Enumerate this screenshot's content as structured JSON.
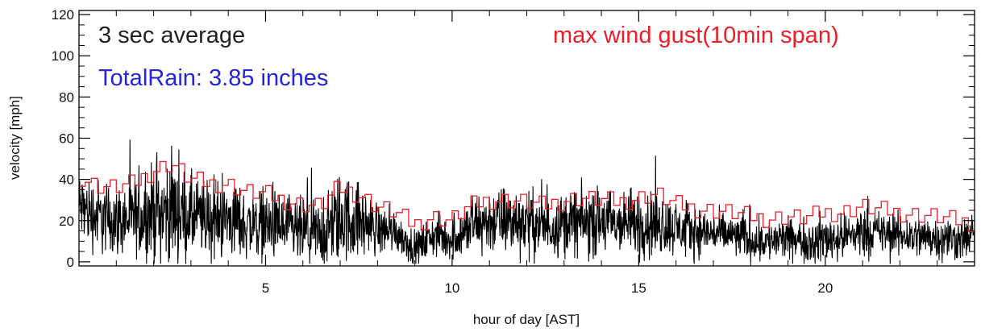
{
  "chart_data": {
    "type": "line",
    "title": "",
    "xlabel": "hour of day [AST]",
    "ylabel": "velocity [mph]",
    "xlim": [
      0,
      24
    ],
    "ylim": [
      -2,
      122
    ],
    "x_ticks": [
      5,
      10,
      15,
      20
    ],
    "x_tick_labels": [
      "5",
      "10",
      "15",
      "20"
    ],
    "y_ticks": [
      0,
      20,
      40,
      60,
      80,
      100,
      120
    ],
    "y_tick_labels": [
      "0",
      "20",
      "40",
      "60",
      "80",
      "100",
      "120"
    ],
    "grid": false,
    "legend": "none",
    "annotations": [
      {
        "id": "average",
        "text": "3 sec average",
        "color": "#222222",
        "placement": "top-left"
      },
      {
        "id": "gust",
        "text": "max wind gust(10min span)",
        "color": "#e8202a",
        "placement": "top-right"
      },
      {
        "id": "rain",
        "text": "TotalRain: 3.85 inches",
        "color": "#2424d8",
        "placement": "top-left-below"
      }
    ],
    "series": [
      {
        "id": "avg3s",
        "color": "#000000",
        "description_hidden": true,
        "x": [
          0.0,
          0.5,
          1.0,
          1.5,
          2.0,
          2.5,
          3.0,
          3.5,
          4.0,
          4.5,
          5.0,
          5.5,
          6.0,
          6.5,
          7.0,
          7.5,
          8.0,
          8.5,
          9.0,
          9.5,
          10.0,
          10.5,
          11.0,
          11.5,
          12.0,
          12.5,
          13.0,
          13.5,
          14.0,
          14.5,
          15.0,
          15.5,
          16.0,
          16.5,
          17.0,
          17.5,
          18.0,
          18.5,
          19.0,
          19.5,
          20.0,
          20.5,
          21.0,
          21.5,
          22.0,
          22.5,
          23.0,
          23.5,
          24.0
        ],
        "y": [
          27,
          22,
          20,
          21,
          24,
          25,
          22,
          20,
          21,
          18,
          18,
          16,
          14,
          13,
          21,
          20,
          16,
          15,
          6,
          13,
          11,
          17,
          20,
          20,
          19,
          17,
          19,
          19,
          19,
          18,
          19,
          19,
          16,
          15,
          14,
          13,
          11,
          10,
          11,
          10,
          11,
          12,
          15,
          14,
          13,
          12,
          12,
          11,
          12
        ],
        "spread": [
          8,
          9,
          8,
          9,
          11,
          12,
          10,
          9,
          9,
          8,
          8,
          8,
          8,
          8,
          11,
          9,
          6,
          5,
          4,
          5,
          5,
          7,
          8,
          8,
          8,
          7,
          7,
          8,
          8,
          7,
          8,
          8,
          6,
          6,
          5,
          5,
          5,
          5,
          5,
          5,
          6,
          5,
          6,
          5,
          5,
          5,
          5,
          5,
          5
        ]
      },
      {
        "id": "gust10min",
        "color": "#e8202a",
        "x": [
          0.0,
          0.5,
          1.0,
          1.5,
          2.0,
          2.5,
          3.0,
          3.5,
          4.0,
          4.5,
          5.0,
          5.5,
          6.0,
          6.5,
          7.0,
          7.5,
          8.0,
          8.5,
          9.0,
          9.5,
          10.0,
          10.5,
          11.0,
          11.5,
          12.0,
          12.5,
          13.0,
          13.5,
          14.0,
          14.5,
          15.0,
          15.5,
          16.0,
          16.5,
          17.0,
          17.5,
          18.0,
          18.5,
          19.0,
          19.5,
          20.0,
          20.5,
          21.0,
          21.5,
          22.0,
          22.5,
          23.0,
          23.5,
          24.0
        ],
        "y": [
          42,
          37,
          36,
          38,
          44,
          48,
          40,
          38,
          38,
          34,
          33,
          30,
          28,
          27,
          36,
          33,
          27,
          24,
          18,
          22,
          20,
          27,
          30,
          30,
          29,
          27,
          30,
          31,
          30,
          29,
          31,
          33,
          28,
          26,
          25,
          24,
          22,
          21,
          22,
          21,
          24,
          24,
          27,
          25,
          24,
          23,
          22,
          20,
          19
        ]
      }
    ]
  }
}
